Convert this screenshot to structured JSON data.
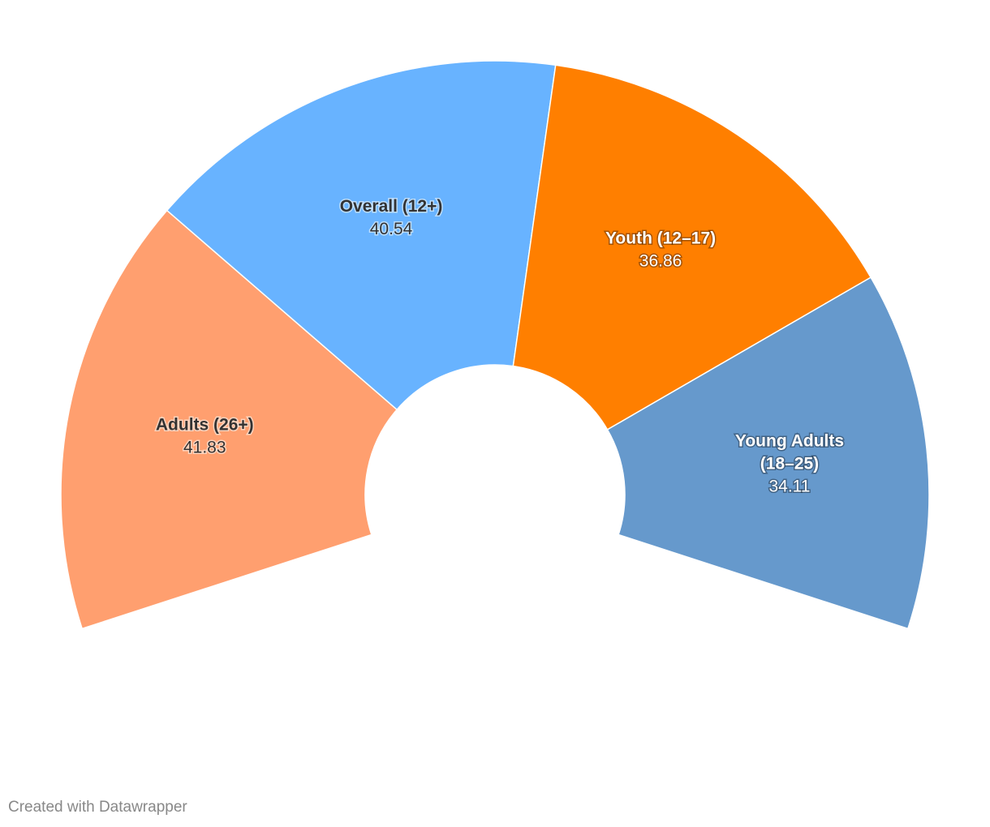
{
  "chart_data": {
    "type": "pie",
    "variant": "semi-donut",
    "title": "",
    "slices": [
      {
        "label": "Adults (26+)",
        "value": 41.83,
        "value_label": "41.83",
        "color": "#ff9f6f",
        "label_style": "dark"
      },
      {
        "label": "Overall (12+)",
        "value": 40.54,
        "value_label": "40.54",
        "color": "#68b3ff",
        "label_style": "dark"
      },
      {
        "label": "Youth (12–17)",
        "value": 36.86,
        "value_label": "36.86",
        "color": "#ff7f00",
        "label_style": "light"
      },
      {
        "label": "Young Adults (18–25)",
        "value": 34.11,
        "value_label": "34.11",
        "color": "#6699cc",
        "label_style": "light"
      }
    ]
  },
  "footer": {
    "credit": "Created with Datawrapper"
  }
}
